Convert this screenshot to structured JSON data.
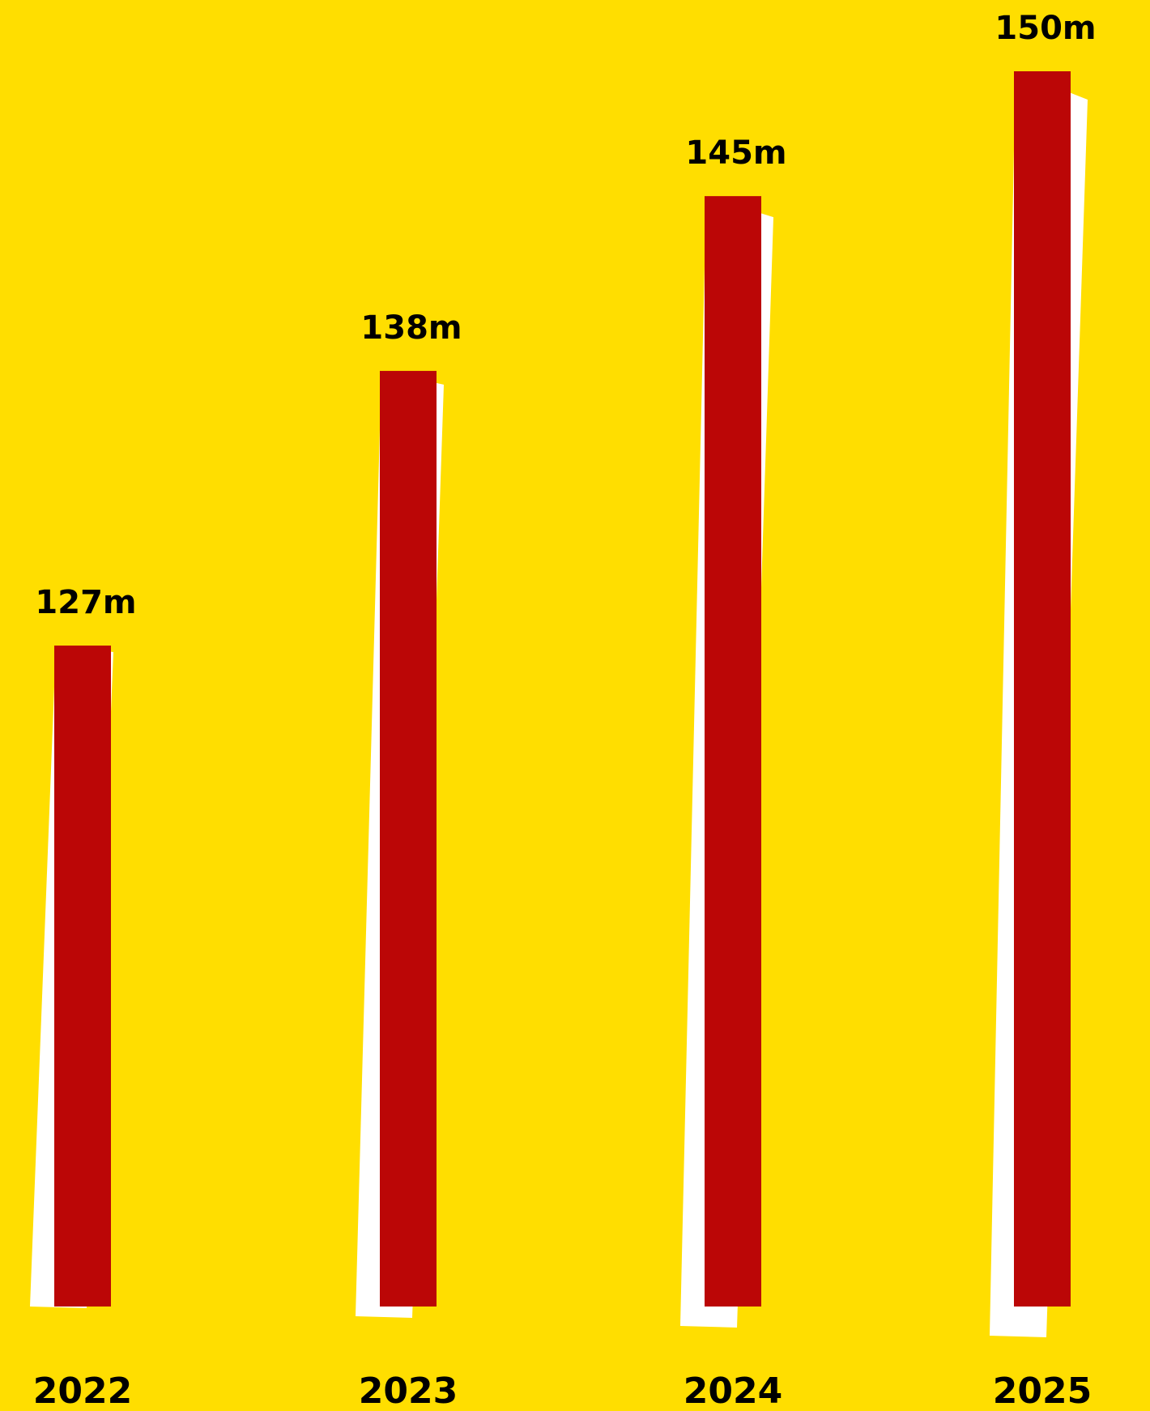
{
  "colors": {
    "background": "#FFDE00",
    "bar": "#BB0606",
    "shadow": "#FFFFFF",
    "text": "#000000"
  },
  "chart_data": {
    "type": "bar",
    "categories": [
      "2022",
      "2023",
      "2024",
      "2025"
    ],
    "values": [
      127,
      138,
      145,
      150
    ],
    "value_labels": [
      "127m",
      "138m",
      "145m",
      "150m"
    ],
    "title": "",
    "xlabel": "",
    "ylabel": "",
    "ylim": [
      0,
      150
    ],
    "grid": false,
    "legend": "none"
  }
}
